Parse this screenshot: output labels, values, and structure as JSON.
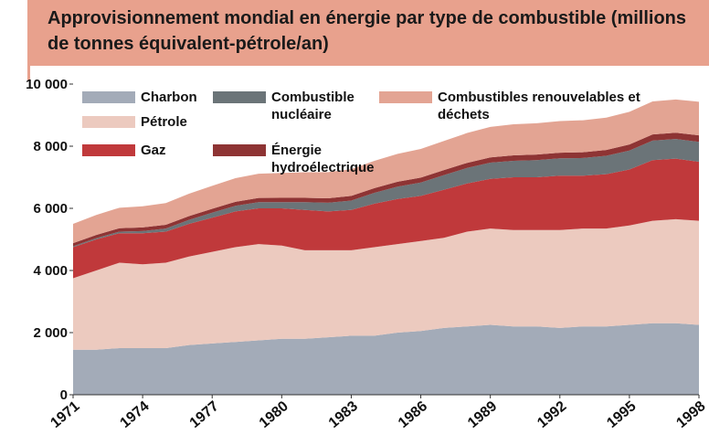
{
  "chart_data": {
    "type": "stacked-area",
    "title": "Approvisionnement mondial en énergie par type de combustible (millions de tonnes équivalent-pétrole/an)",
    "x": [
      1971,
      1972,
      1973,
      1974,
      1975,
      1976,
      1977,
      1978,
      1979,
      1980,
      1981,
      1982,
      1983,
      1984,
      1985,
      1986,
      1987,
      1988,
      1989,
      1990,
      1991,
      1992,
      1993,
      1994,
      1995,
      1996,
      1997,
      1998
    ],
    "xlim": [
      1971,
      1998
    ],
    "xticks": [
      1971,
      1974,
      1977,
      1980,
      1983,
      1986,
      1989,
      1992,
      1995,
      1998
    ],
    "ylim": [
      0,
      10000
    ],
    "yticks": [
      0,
      {
        "value": 2000,
        "label": "2 000"
      },
      {
        "value": 4000,
        "label": "4 000"
      },
      {
        "value": 6000,
        "label": "6 000"
      },
      {
        "value": 8000,
        "label": "8 000"
      },
      {
        "value": 10000,
        "label": "10 000"
      }
    ],
    "series": [
      {
        "name": "Charbon",
        "color": "#a3abb8",
        "values": [
          1450,
          1450,
          1500,
          1500,
          1500,
          1600,
          1650,
          1700,
          1750,
          1800,
          1800,
          1850,
          1900,
          1900,
          2000,
          2050,
          2150,
          2200,
          2250,
          2200,
          2200,
          2150,
          2200,
          2200,
          2250,
          2300,
          2300,
          2250
        ]
      },
      {
        "name": "Pétrole",
        "color": "#eccabf",
        "values": [
          2300,
          2550,
          2750,
          2700,
          2750,
          2850,
          2950,
          3050,
          3100,
          3000,
          2850,
          2800,
          2750,
          2850,
          2850,
          2900,
          2900,
          3050,
          3100,
          3100,
          3100,
          3150,
          3150,
          3150,
          3200,
          3300,
          3350,
          3350
        ]
      },
      {
        "name": "Gaz",
        "color": "#c0393b",
        "values": [
          1000,
          1000,
          950,
          1000,
          1000,
          1050,
          1100,
          1150,
          1150,
          1200,
          1300,
          1250,
          1300,
          1400,
          1450,
          1450,
          1550,
          1550,
          1600,
          1700,
          1700,
          1750,
          1700,
          1750,
          1800,
          1950,
          1950,
          1900
        ]
      },
      {
        "name": "Combustible nucléaire",
        "color": "#6b7478",
        "values": [
          30,
          40,
          50,
          70,
          100,
          130,
          160,
          180,
          200,
          200,
          250,
          280,
          300,
          350,
          400,
          430,
          470,
          500,
          520,
          530,
          550,
          560,
          570,
          590,
          610,
          630,
          630,
          640
        ]
      },
      {
        "name": "Énergie hydroélectrique",
        "color": "#8e3434",
        "values": [
          100,
          105,
          110,
          115,
          120,
          120,
          125,
          130,
          135,
          140,
          140,
          145,
          150,
          150,
          155,
          160,
          160,
          165,
          170,
          175,
          180,
          180,
          185,
          190,
          195,
          200,
          205,
          210
        ]
      },
      {
        "name": "Combustibles renouvelables et déchets",
        "color": "#e3a493",
        "values": [
          620,
          640,
          660,
          680,
          700,
          720,
          740,
          760,
          780,
          800,
          820,
          840,
          860,
          880,
          900,
          920,
          940,
          960,
          980,
          1000,
          1010,
          1020,
          1030,
          1040,
          1050,
          1060,
          1070,
          1080
        ]
      }
    ]
  }
}
